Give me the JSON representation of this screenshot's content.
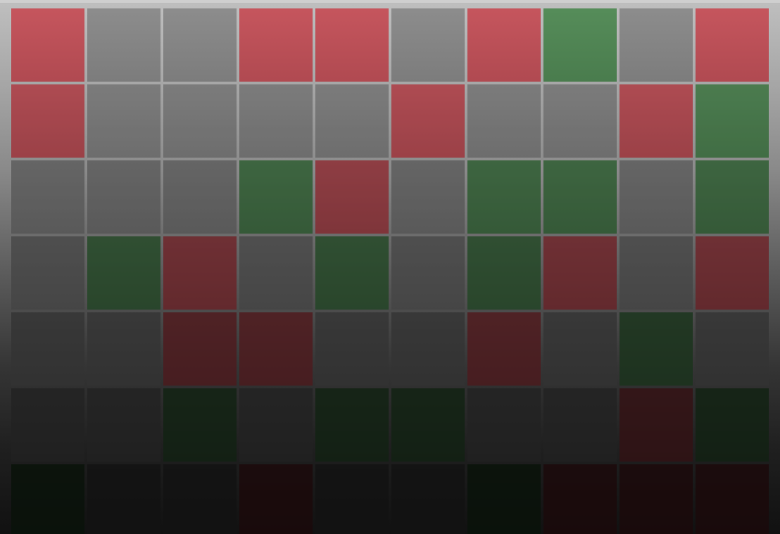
{
  "board": {
    "rows": 7,
    "columns": 10,
    "colors": {
      "red": "#c4525a",
      "green": "#528a56",
      "gray": "#8a8a8a"
    },
    "cells": [
      [
        "red",
        "gray",
        "gray",
        "red",
        "red",
        "gray",
        "red",
        "green",
        "gray",
        "red"
      ],
      [
        "red",
        "gray",
        "gray",
        "gray",
        "gray",
        "red",
        "gray",
        "gray",
        "red",
        "green"
      ],
      [
        "gray",
        "gray",
        "gray",
        "green",
        "red",
        "gray",
        "green",
        "green",
        "gray",
        "green"
      ],
      [
        "gray",
        "green",
        "red",
        "gray",
        "green",
        "gray",
        "green",
        "red",
        "gray",
        "red"
      ],
      [
        "gray",
        "gray",
        "red",
        "red",
        "gray",
        "gray",
        "red",
        "gray",
        "green",
        "gray"
      ],
      [
        "gray",
        "gray",
        "green",
        "gray",
        "green",
        "green",
        "gray",
        "gray",
        "red",
        "green"
      ],
      [
        "green",
        "gray",
        "gray",
        "red",
        "gray",
        "gray",
        "green",
        "red",
        "red",
        "red"
      ]
    ]
  }
}
